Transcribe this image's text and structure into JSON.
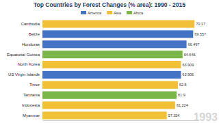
{
  "chart_data": {
    "type": "bar",
    "orientation": "horizontal",
    "title": "Top Countries by Forest Changes (% area): 1990 - 2015",
    "annotations": [
      "1993"
    ],
    "categories": [
      "Cambodia",
      "Belize",
      "Honduras",
      "Equatorial Guinea",
      "North Korea",
      "US Virgin Islands",
      "Timor",
      "Tanzania",
      "Indonesia",
      "Myanmar"
    ],
    "series": [
      {
        "name": "America",
        "color": "#4472c4",
        "values": [
          null,
          69.557,
          66.497,
          null,
          null,
          63.906,
          null,
          null,
          null,
          null
        ]
      },
      {
        "name": "Asia",
        "color": "#f2c037",
        "values": [
          70.17,
          null,
          null,
          null,
          63.909,
          null,
          62.5,
          null,
          61.224,
          57.354
        ]
      },
      {
        "name": "Africa",
        "color": "#7ab648",
        "values": [
          null,
          null,
          null,
          64.646,
          null,
          null,
          null,
          61.9,
          null,
          null
        ]
      }
    ],
    "xlim": [
      0,
      72
    ],
    "xticks": [],
    "tick_labels": false,
    "data_labels": true,
    "legend": "top",
    "grid": false
  }
}
